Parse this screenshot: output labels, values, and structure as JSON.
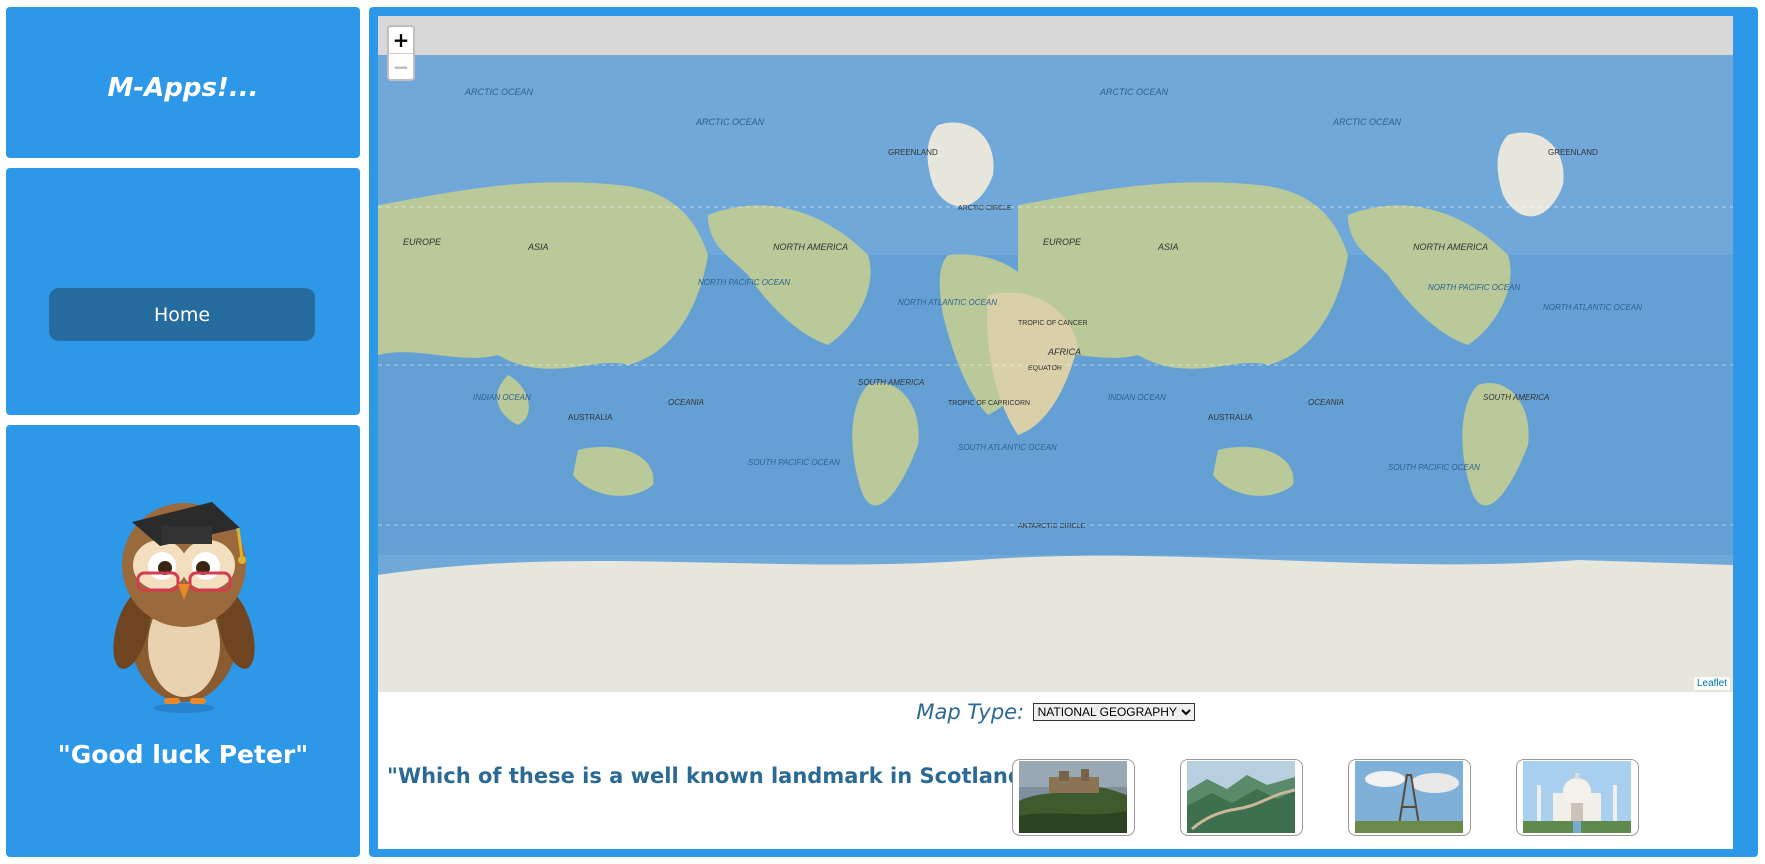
{
  "app": {
    "title": "M-Apps!..."
  },
  "nav": {
    "home_label": "Home"
  },
  "mascot": {
    "name": "owl-with-graduation-cap",
    "message": "\"Good luck Peter\""
  },
  "map": {
    "zoom_in": "+",
    "zoom_out": "−",
    "attribution": "Leaflet",
    "labels": {
      "arctic_ocean": "ARCTIC OCEAN",
      "greenland": "GREENLAND",
      "arctic_circle": "ARCTIC CIRCLE",
      "europe": "EUROPE",
      "asia": "ASIA",
      "north_america": "NORTH AMERICA",
      "north_pacific": "NORTH PACIFIC OCEAN",
      "north_atlantic": "NORTH ATLANTIC OCEAN",
      "tropic_cancer": "TROPIC OF CANCER",
      "africa": "AFRICA",
      "equator": "EQUATOR",
      "indian_ocean": "INDIAN OCEAN",
      "oceania": "OCEANIA",
      "south_america": "SOUTH AMERICA",
      "tropic_capricorn": "TROPIC OF CAPRICORN",
      "australia": "AUSTRALIA",
      "south_pacific": "SOUTH PACIFIC OCEAN",
      "south_atlantic": "SOUTH ATLANTIC OCEAN",
      "antarctic_circle": "ANTARCTIC CIRCLE"
    },
    "colors": {
      "ocean": "#6fa8d9",
      "deep_ocean": "#4d8fcc",
      "land": "#b9c99a",
      "ice": "#e6e6dc"
    }
  },
  "map_type": {
    "label": "Map Type:",
    "selected": "NATIONAL GEOGRAPHY"
  },
  "quiz": {
    "question": "\"Which of these is a well known landmark in Scotland?\"",
    "answers": [
      {
        "name": "castle-on-rock"
      },
      {
        "name": "great-wall"
      },
      {
        "name": "eiffel-tower"
      },
      {
        "name": "taj-mahal"
      }
    ]
  },
  "theme": {
    "panel": "#2d97e8",
    "button": "#256b9e",
    "text_blue": "#2b6a95"
  }
}
